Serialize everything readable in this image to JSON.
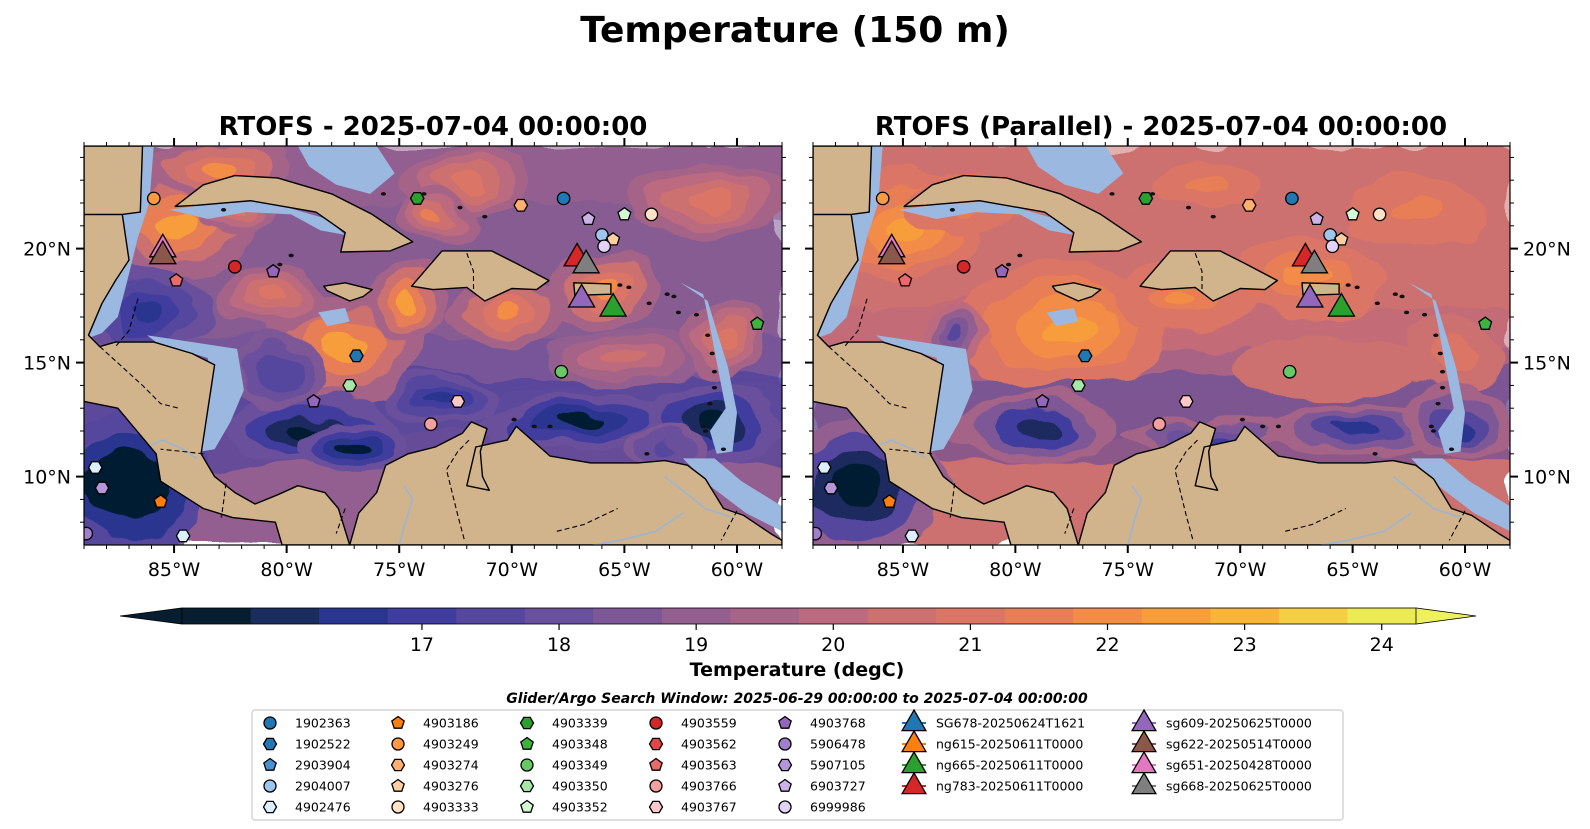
{
  "suptitle": "Temperature (150 m)",
  "panels": [
    {
      "title": "RTOFS - 2025-07-04 00:00:00",
      "variant": "rtofs"
    },
    {
      "title": "RTOFS (Parallel) - 2025-07-04 00:00:00",
      "variant": "parallel"
    }
  ],
  "map_extent": {
    "lon": [
      -89,
      -58
    ],
    "lat": [
      7,
      24.5
    ]
  },
  "lon_ticks": [
    -85,
    -80,
    -75,
    -70,
    -65,
    -60
  ],
  "lat_ticks": [
    10,
    15,
    20
  ],
  "lon_labels": [
    "85°W",
    "80°W",
    "75°W",
    "70°W",
    "65°W",
    "60°W"
  ],
  "lat_labels": [
    "10°N",
    "15°N",
    "20°N"
  ],
  "colors": {
    "land": "#d2b48c",
    "shallow": "#9ab8e0",
    "coast": "#000000"
  },
  "colorbar": {
    "label": "Temperature (degC)",
    "min": 16.75,
    "max": 24.5,
    "step": 0.5,
    "ticks": [
      "17",
      "18",
      "19",
      "20",
      "21",
      "22",
      "23",
      "24"
    ],
    "tick_values": [
      17,
      18,
      19,
      20,
      21,
      22,
      23,
      24
    ],
    "colors": [
      "#061e30",
      "#1b2c5e",
      "#2a3590",
      "#3f3d9e",
      "#55479e",
      "#6a509c",
      "#7e5896",
      "#925f90",
      "#a66488",
      "#bc6a80",
      "#cc7070",
      "#db7565",
      "#e87e55",
      "#f28c46",
      "#f79d3a",
      "#f9b43a",
      "#f5cf45",
      "#ecea55"
    ],
    "over": "#eef05c",
    "under": "#061e30"
  },
  "legend": {
    "title": "Glider/Argo Search Window: 2025-06-29 00:00:00 to 2025-07-04 00:00:00",
    "columns": [
      [
        {
          "label": "1902363",
          "marker": "circle",
          "color": "#1f77b4"
        },
        {
          "label": "1902522",
          "marker": "hexagon",
          "color": "#1f77b4"
        },
        {
          "label": "2903904",
          "marker": "pentagon",
          "color": "#4a90d0"
        },
        {
          "label": "2904007",
          "marker": "circle",
          "color": "#9cc6ec"
        },
        {
          "label": "4902476",
          "marker": "hexagon",
          "color": "#dcefff"
        }
      ],
      [
        {
          "label": "4903186",
          "marker": "pentagon",
          "color": "#ff7f0e"
        },
        {
          "label": "4903249",
          "marker": "circle",
          "color": "#ff9a40"
        },
        {
          "label": "4903274",
          "marker": "hexagon",
          "color": "#ffb070"
        },
        {
          "label": "4903276",
          "marker": "pentagon",
          "color": "#ffcf9f"
        },
        {
          "label": "4903333",
          "marker": "circle",
          "color": "#ffe2c6"
        }
      ],
      [
        {
          "label": "4903339",
          "marker": "hexagon",
          "color": "#2ca02c"
        },
        {
          "label": "4903348",
          "marker": "pentagon",
          "color": "#3cb43c"
        },
        {
          "label": "4903349",
          "marker": "circle",
          "color": "#66c966"
        },
        {
          "label": "4903350",
          "marker": "hexagon",
          "color": "#a6e6a6"
        },
        {
          "label": "4903352",
          "marker": "pentagon",
          "color": "#d4f7d4"
        }
      ],
      [
        {
          "label": "4903559",
          "marker": "circle",
          "color": "#d62728"
        },
        {
          "label": "4903562",
          "marker": "hexagon",
          "color": "#e04848"
        },
        {
          "label": "4903563",
          "marker": "pentagon",
          "color": "#e86a6a"
        },
        {
          "label": "4903766",
          "marker": "circle",
          "color": "#f5a0a0"
        },
        {
          "label": "4903767",
          "marker": "hexagon",
          "color": "#ffc8c8"
        }
      ],
      [
        {
          "label": "4903768",
          "marker": "pentagon",
          "color": "#9467bd"
        },
        {
          "label": "5906478",
          "marker": "circle",
          "color": "#a07fcc"
        },
        {
          "label": "5907105",
          "marker": "hexagon",
          "color": "#b497d8"
        },
        {
          "label": "6903727",
          "marker": "pentagon",
          "color": "#cab3e6"
        },
        {
          "label": "6999986",
          "marker": "circle",
          "color": "#e2d2f6"
        }
      ],
      [
        {
          "label": "SG678-20250624T1621",
          "marker": "triangle",
          "color": "#1f77b4"
        },
        {
          "label": "ng615-20250611T0000",
          "marker": "triangle",
          "color": "#ff7f0e"
        },
        {
          "label": "ng665-20250611T0000",
          "marker": "triangle",
          "color": "#2ca02c"
        },
        {
          "label": "ng783-20250611T0000",
          "marker": "triangle",
          "color": "#d62728"
        }
      ],
      [
        {
          "label": "sg609-20250625T0000",
          "marker": "triangle",
          "color": "#9467bd"
        },
        {
          "label": "sg622-20250514T0000",
          "marker": "triangle",
          "color": "#8c564b"
        },
        {
          "label": "sg651-20250428T0000",
          "marker": "triangle",
          "color": "#e377c2"
        },
        {
          "label": "sg668-20250625T0000",
          "marker": "triangle",
          "color": "#7f7f7f"
        }
      ]
    ]
  },
  "argo_points": [
    {
      "label": "4903249",
      "lon": -85.9,
      "lat": 22.2
    },
    {
      "label": "4903339",
      "lon": -74.2,
      "lat": 22.2
    },
    {
      "label": "4903274",
      "lon": -69.6,
      "lat": 21.9
    },
    {
      "label": "1902363",
      "lon": -67.7,
      "lat": 22.2
    },
    {
      "label": "6903727",
      "lon": -66.6,
      "lat": 21.3
    },
    {
      "label": "4903352",
      "lon": -65.0,
      "lat": 21.5
    },
    {
      "label": "4903333",
      "lon": -63.8,
      "lat": 21.5
    },
    {
      "label": "2904007",
      "lon": -66.0,
      "lat": 20.6
    },
    {
      "label": "4903276",
      "lon": -65.5,
      "lat": 20.4
    },
    {
      "label": "6999986",
      "lon": -65.9,
      "lat": 20.1
    },
    {
      "label": "4903559",
      "lon": -82.3,
      "lat": 19.2
    },
    {
      "label": "4903768",
      "lon": -80.6,
      "lat": 19.0
    },
    {
      "label": "4903563",
      "lon": -84.9,
      "lat": 18.6
    },
    {
      "label": "4903348",
      "lon": -59.1,
      "lat": 16.7
    },
    {
      "label": "1902522",
      "lon": -76.9,
      "lat": 15.3
    },
    {
      "label": "4903350",
      "lon": -77.2,
      "lat": 14.0
    },
    {
      "label": "4903349",
      "lon": -67.8,
      "lat": 14.6
    },
    {
      "label": "4903767",
      "lon": -72.4,
      "lat": 13.3
    },
    {
      "label": "4903766",
      "lon": -73.6,
      "lat": 12.3
    },
    {
      "label": "4903768",
      "lon": -78.8,
      "lat": 13.3
    },
    {
      "label": "4902476",
      "lon": -88.5,
      "lat": 10.4
    },
    {
      "label": "5907105",
      "lon": -88.2,
      "lat": 9.5
    },
    {
      "label": "4903186",
      "lon": -85.6,
      "lat": 8.9
    },
    {
      "label": "5906478",
      "lon": -88.9,
      "lat": 7.5
    },
    {
      "label": "4902476",
      "lon": -84.6,
      "lat": 7.4
    }
  ],
  "glider_points": [
    {
      "label": "sg651-20250428T0000",
      "lon": -85.5,
      "lat": 20.1
    },
    {
      "label": "sg622-20250514T0000",
      "lon": -85.5,
      "lat": 19.8
    },
    {
      "label": "ng783-20250611T0000",
      "lon": -67.1,
      "lat": 19.7
    },
    {
      "label": "sg668-20250625T0000",
      "lon": -66.7,
      "lat": 19.4
    },
    {
      "label": "sg609-20250625T0000",
      "lon": -66.9,
      "lat": 17.9
    },
    {
      "label": "ng665-20250611T0000",
      "lon": -65.5,
      "lat": 17.5
    }
  ]
}
